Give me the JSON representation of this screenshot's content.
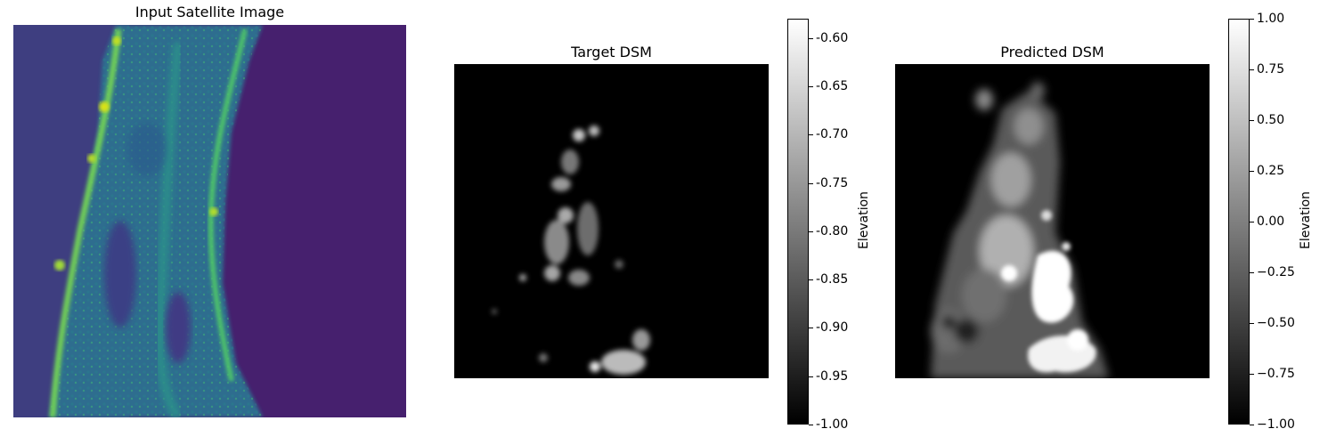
{
  "panels": {
    "input": {
      "title": "Input Satellite Image"
    },
    "target": {
      "title": "Target DSM"
    },
    "predicted": {
      "title": "Predicted DSM"
    }
  },
  "colorbars": {
    "target": {
      "label": "Elevation",
      "range": [
        -1.0,
        -0.58
      ],
      "ticks": [
        "-0.60",
        "-0.65",
        "-0.70",
        "-0.75",
        "-0.80",
        "-0.85",
        "-0.90",
        "-0.95",
        "-1.00"
      ],
      "tick_values": [
        -0.6,
        -0.65,
        -0.7,
        -0.75,
        -0.8,
        -0.85,
        -0.9,
        -0.95,
        -1.0
      ]
    },
    "predicted": {
      "label": "Elevation",
      "range": [
        -1.0,
        1.0
      ],
      "ticks": [
        "1.00",
        "0.75",
        "0.50",
        "0.25",
        "0.00",
        "−0.25",
        "−0.50",
        "−0.75",
        "−1.00"
      ],
      "tick_values": [
        1.0,
        0.75,
        0.5,
        0.25,
        0.0,
        -0.25,
        -0.5,
        -0.75,
        -1.0
      ]
    }
  },
  "colors": {
    "viridis_low": "#46206e",
    "viridis_mid": "#21918c",
    "viridis_high": "#fde725"
  }
}
